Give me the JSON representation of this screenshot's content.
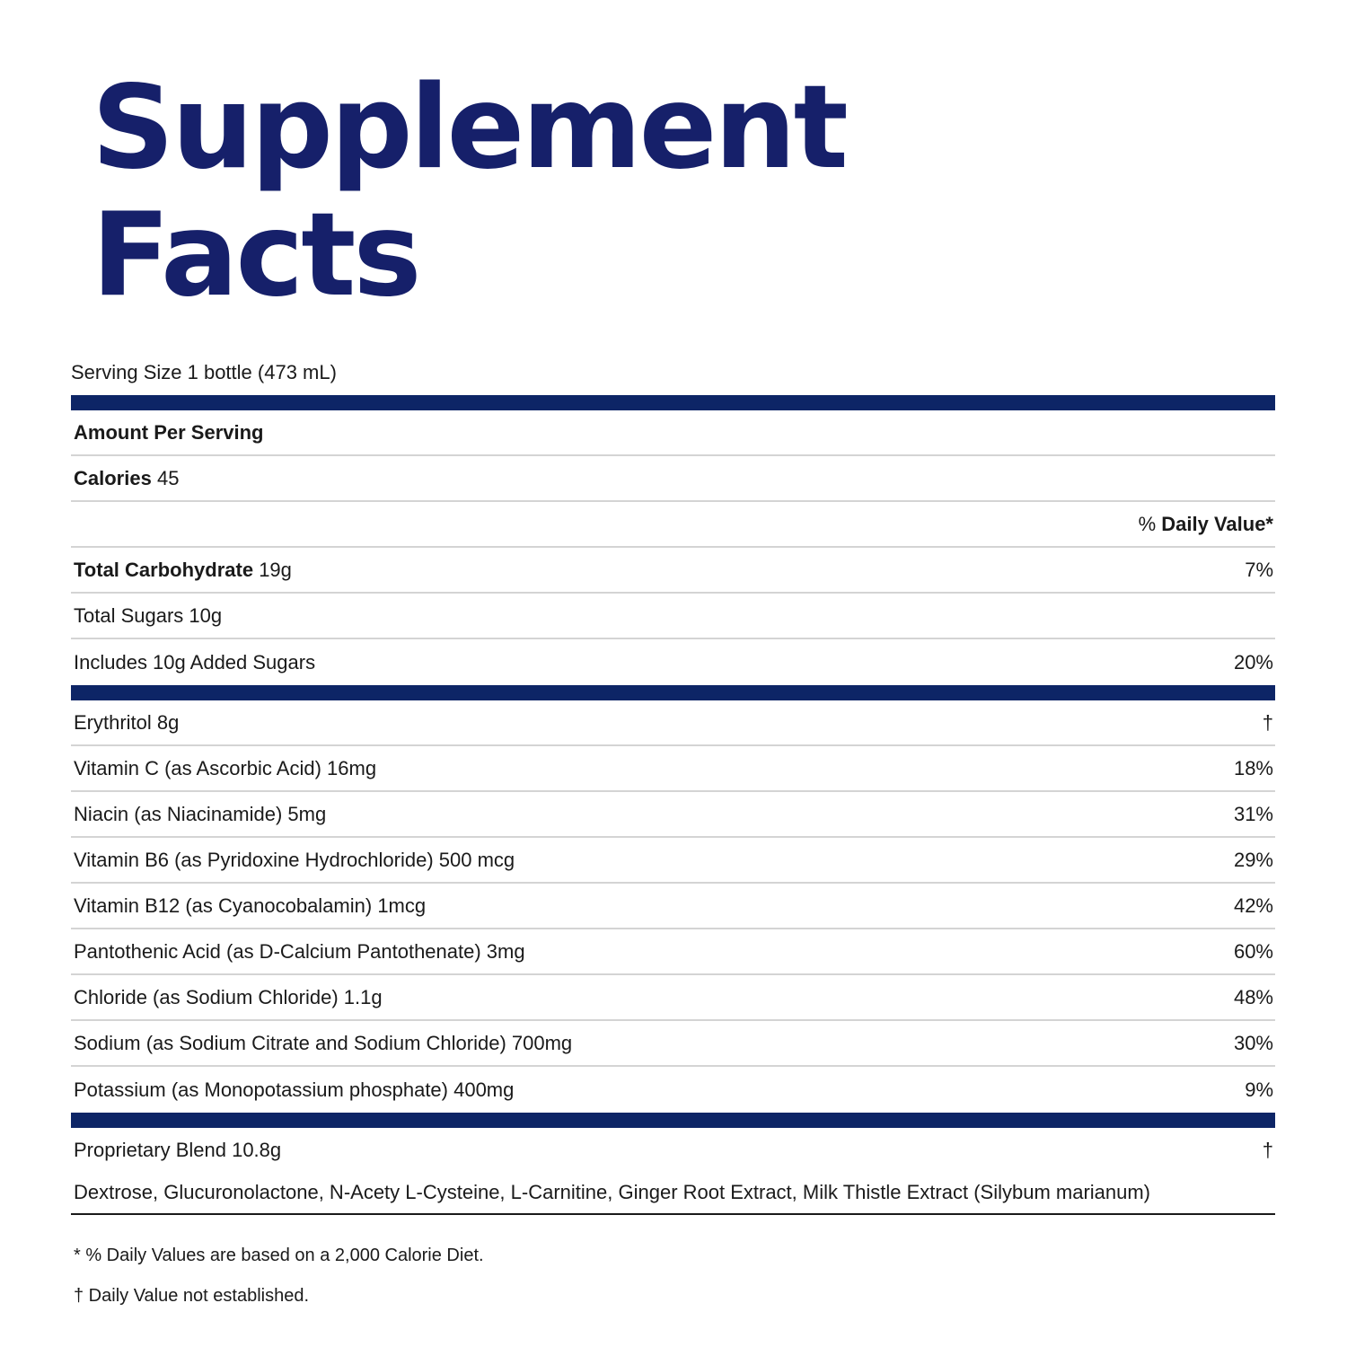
{
  "title": {
    "line1": "Supplement",
    "line2": "Facts"
  },
  "serving_size": "Serving Size 1 bottle (473 mL)",
  "amount_per_serving": "Amount Per Serving",
  "calories": {
    "label": "Calories",
    "value": "45"
  },
  "daily_value_header": "% Daily Value*",
  "section1": [
    {
      "label": "Total Carbohydrate",
      "amount": "19g",
      "dv": "7%"
    },
    {
      "label": "Total Sugars 10g",
      "dv": ""
    },
    {
      "label": "Includes 10g Added Sugars",
      "dv": "20%"
    }
  ],
  "section2": [
    {
      "label": "Erythritol 8g",
      "dv": "†"
    },
    {
      "label": "Vitamin C (as Ascorbic Acid) 16mg",
      "dv": "18%"
    },
    {
      "label": "Niacin (as Niacinamide) 5mg",
      "dv": "31%"
    },
    {
      "label": "Vitamin B6 (as Pyridoxine Hydrochloride) 500 mcg",
      "dv": "29%"
    },
    {
      "label": "Vitamin B12 (as Cyanocobalamin) 1mcg",
      "dv": "42%"
    },
    {
      "label": "Pantothenic Acid (as D-Calcium Pantothenate) 3mg",
      "dv": "60%"
    },
    {
      "label": "Chloride (as Sodium Chloride) 1.1g",
      "dv": "48%"
    },
    {
      "label": "Sodium (as Sodium Citrate and Sodium Chloride) 700mg",
      "dv": "30%"
    },
    {
      "label": "Potassium (as Monopotassium phosphate) 400mg",
      "dv": "9%"
    }
  ],
  "blend": {
    "label": "Proprietary Blend 10.8g",
    "dv": "†",
    "ingredients": "Dextrose, Glucuronolactone, N-Acety L-Cysteine, L-Carnitine, Ginger Root Extract, Milk Thistle Extract (Silybum marianum)"
  },
  "footnotes": [
    "* % Daily Values are based on a 2,000 Calorie Diet.",
    "† Daily Value not established."
  ],
  "colors": {
    "title": "#16206a",
    "bar": "#0d2566"
  }
}
